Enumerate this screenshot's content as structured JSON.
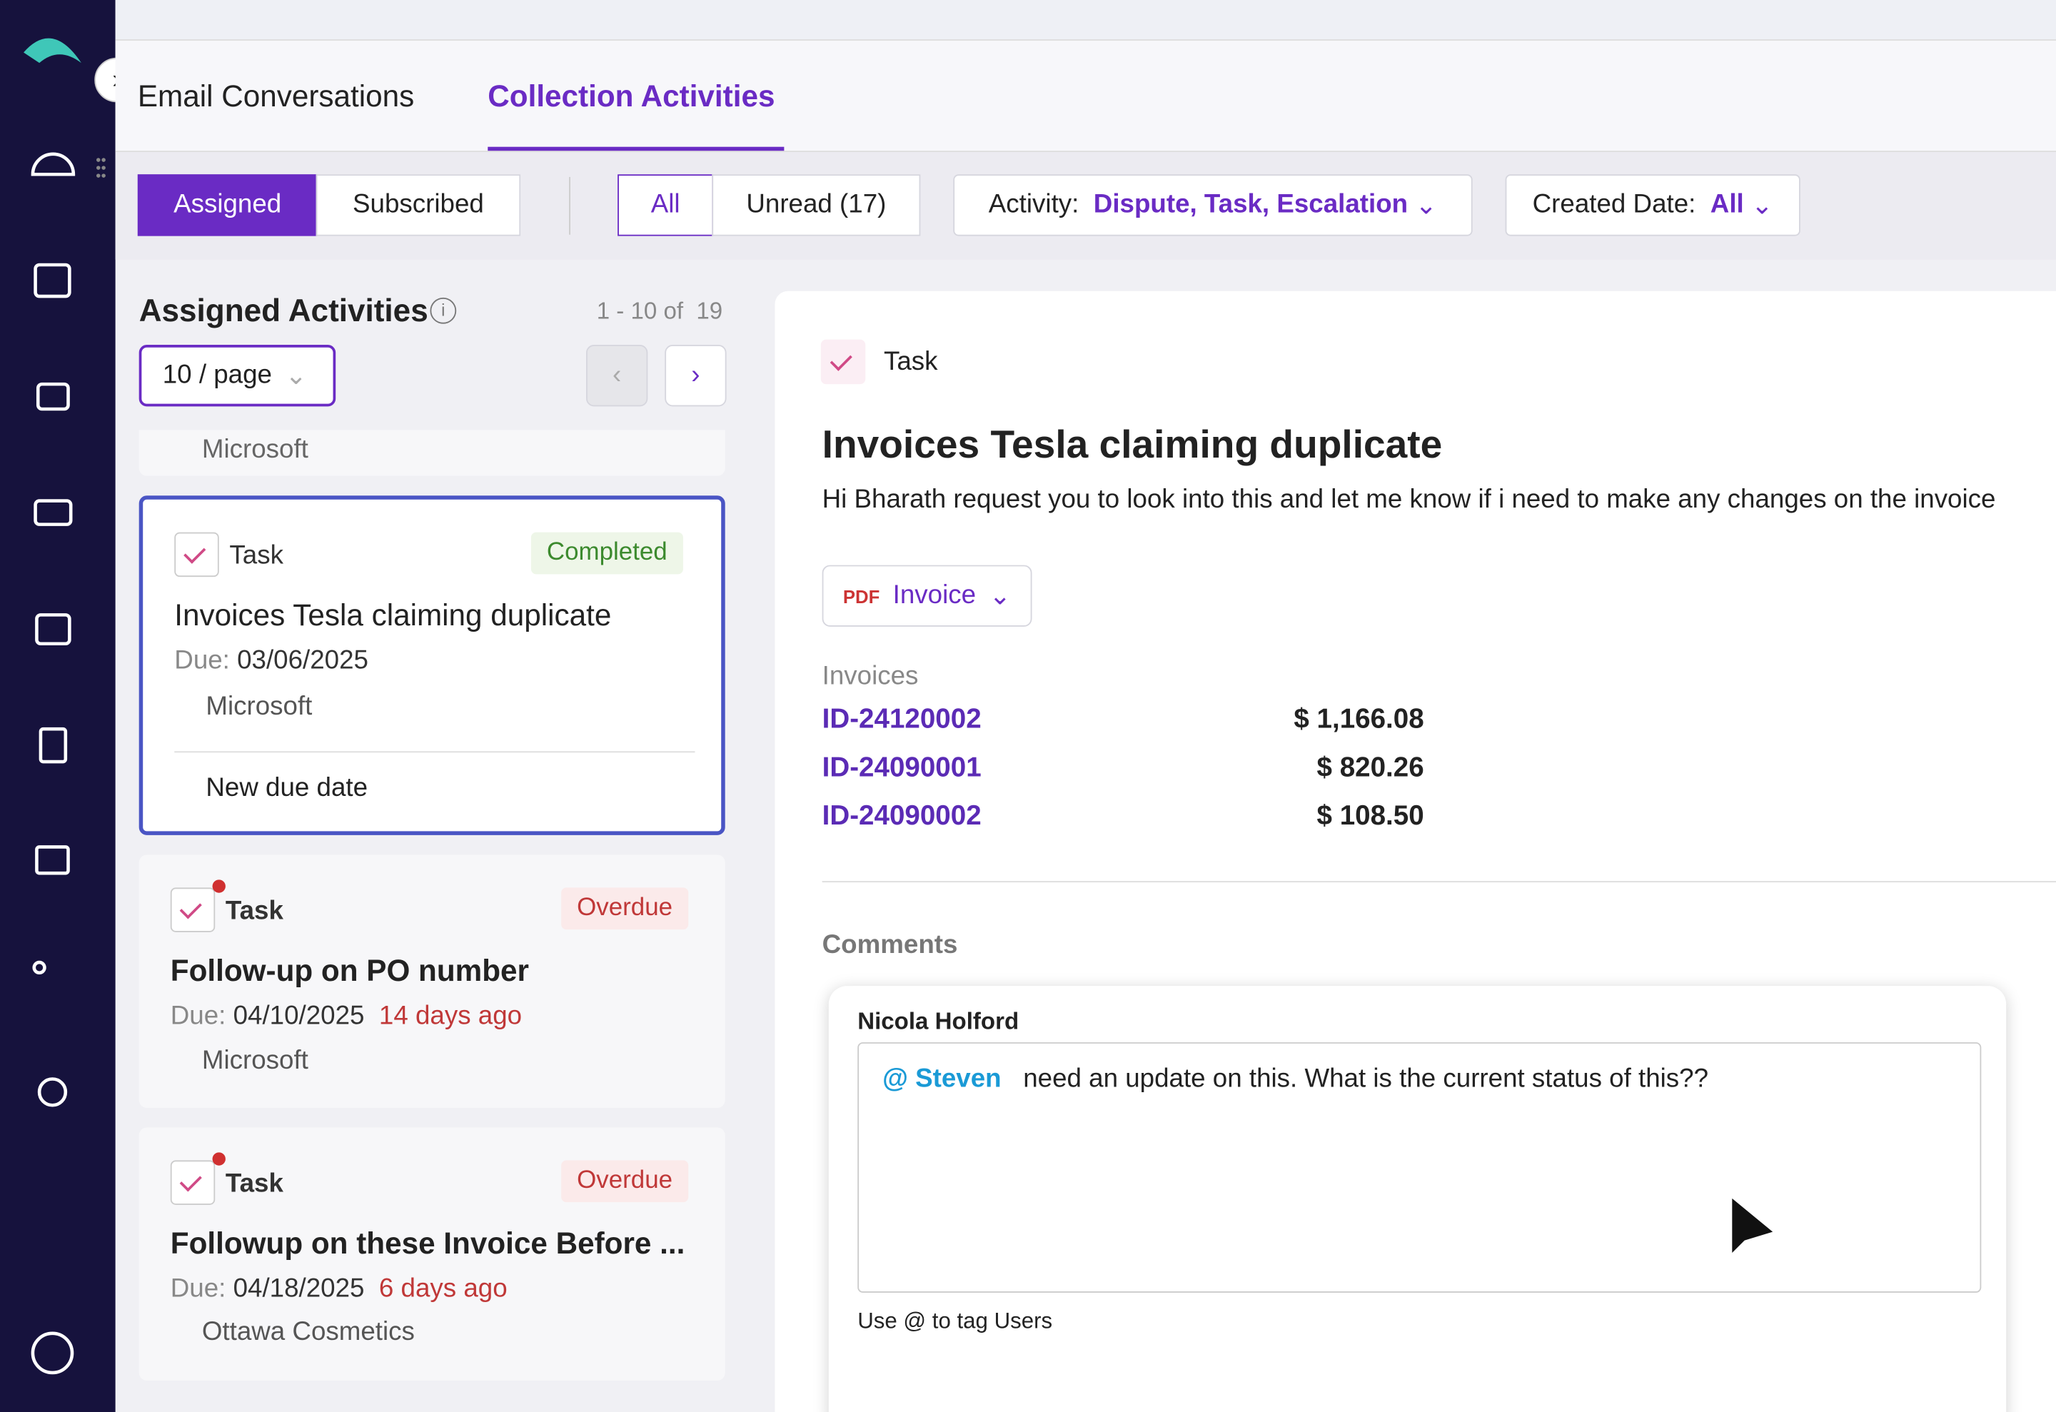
{
  "tabs": [
    "Email Conversations",
    "Collection Activities"
  ],
  "filters": {
    "assigned": "Assigned",
    "subscribed": "Subscribed",
    "all": "All",
    "unread": "Unread (17)",
    "activity_label": "Activity:",
    "activity_value": "Dispute, Task, Escalation",
    "created_label": "Created Date:",
    "created_value": "All"
  },
  "list": {
    "title": "Assigned Activities",
    "range": "1 - 10 of  19",
    "page_size": "10 / page",
    "partial_company": "Microsoft",
    "cards": [
      {
        "type": "Task",
        "status": "Completed",
        "title": "Invoices Tesla claiming duplicate",
        "due_label": "Due:",
        "due": "03/06/2025",
        "company": "Microsoft",
        "reminder": "New due date"
      },
      {
        "type": "Task",
        "status": "Overdue",
        "title": "Follow-up on PO number",
        "due_label": "Due:",
        "due": "04/10/2025",
        "ago": "14 days ago",
        "company": "Microsoft"
      },
      {
        "type": "Task",
        "status": "Overdue",
        "title": "Followup on these Invoice Before ...",
        "due_label": "Due:",
        "due": "04/18/2025",
        "ago": "6 days ago",
        "company": "Ottawa Cosmetics"
      }
    ]
  },
  "detail": {
    "type": "Task",
    "title": "Invoices Tesla claiming duplicate",
    "description": "Hi Bharath request you to look into this and let me know if i need to make any changes on the invoice",
    "attachment": "Invoice",
    "invoices_label": "Invoices",
    "invoices": [
      {
        "id": "ID-24120002",
        "amount": "$ 1,166.08"
      },
      {
        "id": "ID-24090001",
        "amount": "$ 820.26"
      },
      {
        "id": "ID-24090002",
        "amount": "$ 108.50"
      }
    ],
    "comments_label": "Comments",
    "comment": {
      "author": "Nicola Holford",
      "mention": "@ Steven",
      "text": "need an update on this. What is the current status of this??",
      "hint": "Use @ to tag Users"
    }
  }
}
